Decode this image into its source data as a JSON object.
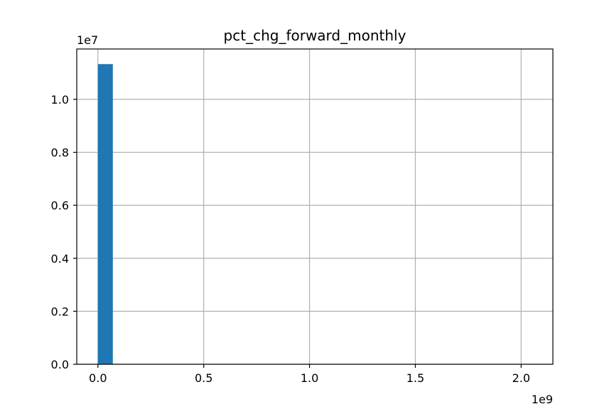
{
  "chart_data": {
    "type": "bar",
    "title": "pct_chg_forward_monthly",
    "xlabel": "",
    "ylabel": "",
    "x_offset_label": "1e9",
    "y_offset_label": "1e7",
    "xlim": [
      -0.1,
      2.15
    ],
    "ylim": [
      0,
      1.19
    ],
    "x_ticks": [
      {
        "value": 0.0,
        "label": "0.0"
      },
      {
        "value": 0.5,
        "label": "0.5"
      },
      {
        "value": 1.0,
        "label": "1.0"
      },
      {
        "value": 1.5,
        "label": "1.5"
      },
      {
        "value": 2.0,
        "label": "2.0"
      }
    ],
    "y_ticks": [
      {
        "value": 0.0,
        "label": "0.0"
      },
      {
        "value": 0.2,
        "label": "0.2"
      },
      {
        "value": 0.4,
        "label": "0.4"
      },
      {
        "value": 0.6,
        "label": "0.6"
      },
      {
        "value": 0.8,
        "label": "0.8"
      },
      {
        "value": 1.0,
        "label": "1.0"
      }
    ],
    "grid": true,
    "bar_color": "#1f77b4",
    "bins": [
      {
        "x0": 0.0,
        "x1": 0.0705,
        "count": 1.133
      }
    ]
  }
}
